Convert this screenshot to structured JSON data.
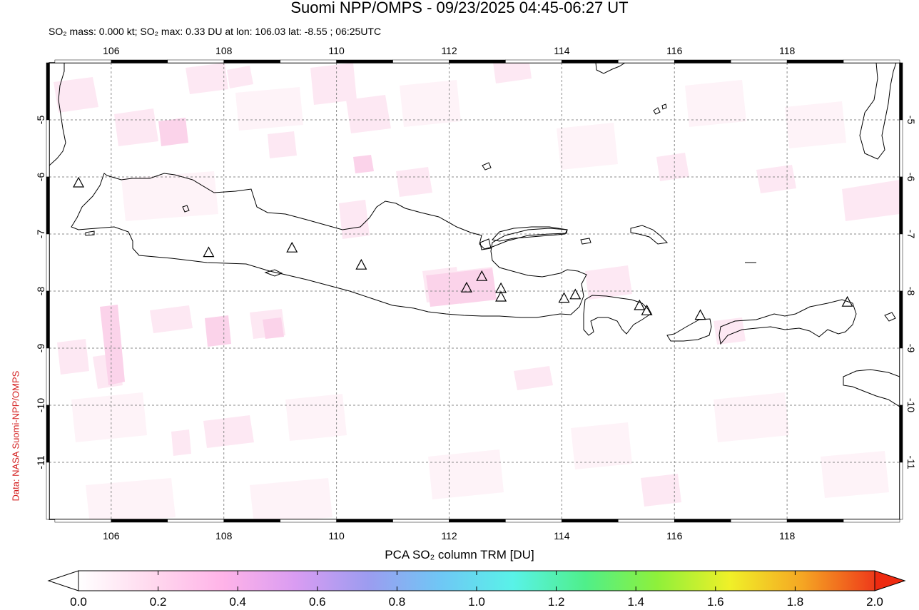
{
  "title": "Suomi NPP/OMPS - 09/23/2025 04:45-06:27 UT",
  "subtitle": "SO₂ mass: 0.000 kt; SO₂ max: 0.33 DU at lon: 106.03 lat: -8.55 ; 06:25UTC",
  "credit": "Data: NASA Suomi-NPP/OMPS",
  "map": {
    "lon_ticks": [
      "106",
      "108",
      "110",
      "112",
      "114",
      "116",
      "118"
    ],
    "lat_ticks": [
      "-5",
      "-6",
      "-7",
      "-8",
      "-9",
      "-10",
      "-11"
    ],
    "lon_range": [
      104.9,
      120.0
    ],
    "lat_range": [
      -4.0,
      -12.0
    ],
    "grid": true,
    "volcanoes_icon": "triangle-icon",
    "volcanoes": [
      [
        105.42,
        -6.1
      ],
      [
        107.73,
        -7.32
      ],
      [
        109.21,
        -7.24
      ],
      [
        110.44,
        -7.54
      ],
      [
        112.31,
        -7.94
      ],
      [
        112.58,
        -7.74
      ],
      [
        112.92,
        -7.95
      ],
      [
        112.92,
        -8.1
      ],
      [
        114.04,
        -8.12
      ],
      [
        114.24,
        -8.06
      ],
      [
        115.38,
        -8.25
      ],
      [
        115.51,
        -8.34
      ],
      [
        116.46,
        -8.42
      ],
      [
        119.07,
        -8.19
      ]
    ]
  },
  "colorbar": {
    "title": "PCA SO₂ column TRM [DU]",
    "ticks": [
      "0.0",
      "0.2",
      "0.4",
      "0.6",
      "0.8",
      "1.0",
      "1.2",
      "1.4",
      "1.6",
      "1.8",
      "2.0"
    ],
    "range": [
      0.0,
      2.0
    ],
    "colors": [
      "#ffffff",
      "#ffd9ee",
      "#ffb3e8",
      "#d99cf2",
      "#9c9cf0",
      "#6fc7f5",
      "#59f2e8",
      "#4fef8a",
      "#8ff03a",
      "#f0f028",
      "#f5a623",
      "#ee3a1a"
    ]
  }
}
